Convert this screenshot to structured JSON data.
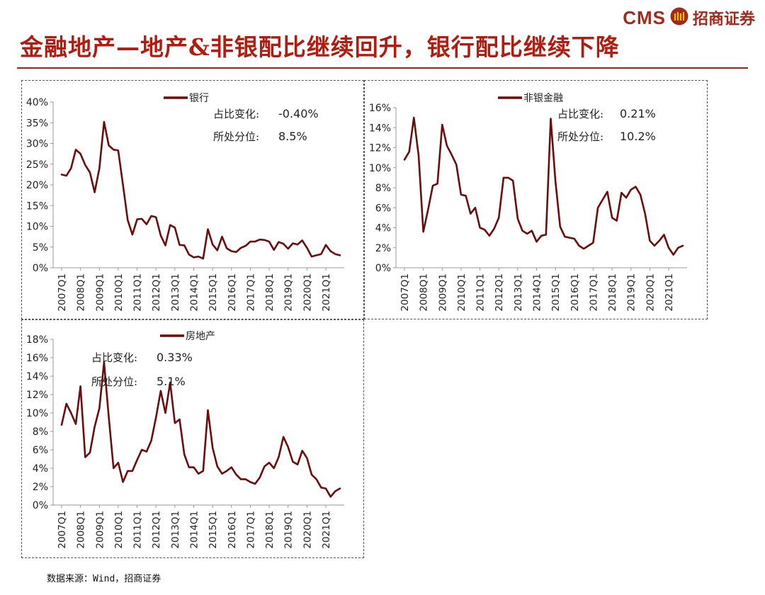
{
  "header": {
    "brand_cms": "CMS",
    "brand_name": "招商证券",
    "brand_color": "#a02a1c",
    "title": "金融地产—地产&非银配比继续回升，银行配比继续下降",
    "title_color": "#b01c10"
  },
  "source": "数据来源：Wind，招商证券",
  "line_color": "#6b0d0d",
  "x_ticks": [
    "2007Q1",
    "2008Q1",
    "2009Q1",
    "2010Q1",
    "2011Q1",
    "2012Q1",
    "2013Q1",
    "2014Q1",
    "2015Q1",
    "2016Q1",
    "2017Q1",
    "2018Q1",
    "2019Q1",
    "2020Q1",
    "2021Q1"
  ],
  "chart_data": [
    {
      "id": "bank",
      "type": "line",
      "series_name": "银行",
      "annotation_change_label": "占比变化:",
      "annotation_change_value": "-0.40%",
      "annotation_pct_label": "所处分位:",
      "annotation_pct_value": "8.5%",
      "ylim": [
        0,
        40
      ],
      "yticks": [
        0,
        5,
        10,
        15,
        20,
        25,
        30,
        35,
        40
      ],
      "ytick_labels": [
        "0%",
        "5%",
        "10%",
        "15%",
        "20%",
        "25%",
        "30%",
        "35%",
        "40%"
      ],
      "start": "2007Q1",
      "values": [
        22.5,
        22.2,
        24.0,
        28.5,
        27.5,
        24.8,
        23.0,
        18.2,
        24.0,
        35.2,
        29.5,
        28.5,
        28.3,
        20.0,
        11.5,
        8.0,
        11.7,
        11.8,
        10.5,
        12.5,
        12.2,
        7.8,
        5.4,
        10.3,
        9.7,
        5.5,
        5.4,
        3.2,
        2.5,
        2.7,
        2.2,
        9.3,
        5.6,
        4.2,
        7.5,
        4.7,
        4.0,
        3.8,
        4.8,
        5.3,
        6.3,
        6.3,
        6.8,
        6.7,
        6.3,
        4.3,
        6.2,
        5.8,
        4.6,
        5.9,
        5.6,
        6.6,
        4.8,
        2.7,
        3.0,
        3.3,
        5.5,
        4.0,
        3.3,
        3.0
      ]
    },
    {
      "id": "nonbank",
      "type": "line",
      "series_name": "非银金融",
      "annotation_change_label": "占比变化:",
      "annotation_change_value": "0.21%",
      "annotation_pct_label": "所处分位:",
      "annotation_pct_value": "10.2%",
      "ylim": [
        0,
        16
      ],
      "yticks": [
        0,
        2,
        4,
        6,
        8,
        10,
        12,
        14,
        16
      ],
      "ytick_labels": [
        "0%",
        "2%",
        "4%",
        "6%",
        "8%",
        "10%",
        "12%",
        "14%",
        "16%"
      ],
      "start": "2007Q1",
      "values": [
        10.8,
        11.6,
        15.0,
        11.2,
        3.6,
        5.8,
        8.2,
        8.4,
        14.3,
        12.2,
        11.3,
        10.3,
        7.3,
        7.2,
        5.4,
        6.0,
        4.0,
        3.8,
        3.2,
        3.9,
        5.0,
        9.0,
        9.0,
        8.7,
        4.9,
        3.7,
        3.4,
        3.7,
        2.6,
        3.2,
        3.3,
        14.9,
        8.6,
        4.1,
        3.1,
        3.0,
        2.9,
        2.2,
        1.9,
        2.2,
        2.5,
        6.0,
        6.8,
        7.6,
        5.0,
        4.7,
        7.5,
        7.0,
        7.8,
        8.1,
        7.3,
        5.4,
        2.7,
        2.2,
        2.7,
        3.3,
        2.0,
        1.3,
        2.0,
        2.2
      ]
    },
    {
      "id": "realestate",
      "type": "line",
      "series_name": "房地产",
      "annotation_change_label": "占比变化:",
      "annotation_change_value": "0.33%",
      "annotation_pct_label": "所处分位:",
      "annotation_pct_value": "5.1%",
      "ylim": [
        0,
        18
      ],
      "yticks": [
        0,
        2,
        4,
        6,
        8,
        10,
        12,
        14,
        16,
        18
      ],
      "ytick_labels": [
        "0%",
        "2%",
        "4%",
        "6%",
        "8%",
        "10%",
        "12%",
        "14%",
        "16%",
        "18%"
      ],
      "start": "2007Q1",
      "values": [
        8.7,
        11.0,
        10.0,
        8.8,
        12.9,
        5.2,
        5.7,
        8.5,
        10.5,
        15.5,
        9.5,
        4.0,
        4.6,
        2.5,
        3.7,
        3.7,
        4.9,
        6.0,
        5.8,
        7.0,
        9.5,
        12.4,
        10.0,
        13.3,
        8.9,
        9.3,
        5.5,
        4.1,
        4.1,
        3.4,
        3.7,
        10.3,
        6.2,
        4.2,
        3.4,
        3.7,
        4.1,
        3.3,
        2.8,
        2.8,
        2.5,
        2.3,
        3.0,
        4.2,
        4.6,
        4.0,
        5.2,
        7.4,
        6.3,
        4.7,
        4.4,
        5.9,
        5.1,
        3.3,
        2.8,
        1.9,
        1.8,
        0.9,
        1.5,
        1.8
      ]
    }
  ]
}
